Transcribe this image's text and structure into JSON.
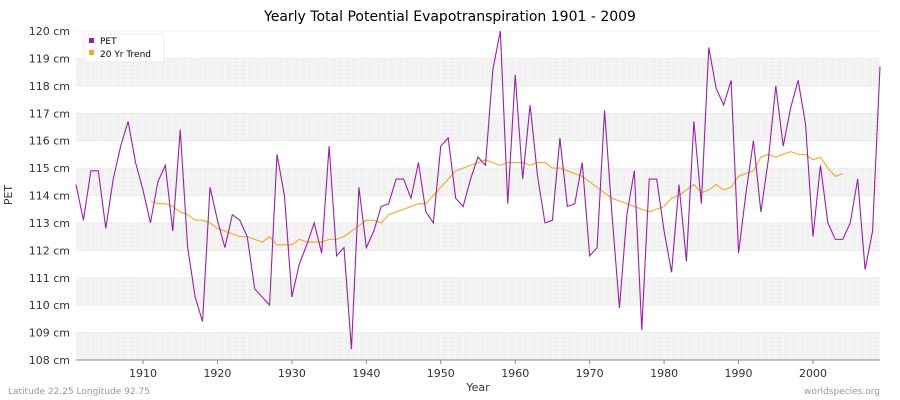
{
  "chart_data": {
    "type": "line",
    "title": "Yearly Total Potential Evapotranspiration 1901 - 2009",
    "xlabel": "Year",
    "ylabel": "PET",
    "xlim": [
      1901,
      2009
    ],
    "ylim": [
      108,
      120
    ],
    "x_ticks": [
      1910,
      1920,
      1930,
      1940,
      1950,
      1960,
      1970,
      1980,
      1990,
      2000
    ],
    "y_ticks": [
      {
        "value": 108,
        "label": "108 cm"
      },
      {
        "value": 109,
        "label": "109 cm"
      },
      {
        "value": 110,
        "label": "110 cm"
      },
      {
        "value": 111,
        "label": "111 cm"
      },
      {
        "value": 112,
        "label": "112 cm"
      },
      {
        "value": 113,
        "label": "113 cm"
      },
      {
        "value": 114,
        "label": "114 cm"
      },
      {
        "value": 115,
        "label": "115 cm"
      },
      {
        "value": 116,
        "label": "116 cm"
      },
      {
        "value": 117,
        "label": "117 cm"
      },
      {
        "value": 118,
        "label": "118 cm"
      },
      {
        "value": 119,
        "label": "119 cm"
      },
      {
        "value": 120,
        "label": "120 cm"
      }
    ],
    "grid": true,
    "legend_position": "top-left",
    "series": [
      {
        "name": "PET",
        "color": "#9b1fa8",
        "x_start": 1901,
        "values": [
          114.4,
          113.1,
          114.9,
          114.9,
          112.8,
          114.6,
          115.8,
          116.7,
          115.2,
          114.2,
          113.0,
          114.5,
          115.1,
          112.7,
          116.4,
          112.1,
          110.3,
          109.4,
          114.3,
          113.1,
          112.1,
          113.3,
          113.1,
          112.5,
          110.6,
          110.3,
          110.0,
          115.5,
          114.0,
          110.3,
          111.5,
          112.2,
          113.0,
          111.9,
          115.8,
          111.8,
          112.1,
          108.4,
          114.3,
          112.1,
          112.7,
          113.6,
          113.7,
          114.6,
          114.6,
          113.9,
          115.2,
          113.4,
          113.0,
          115.8,
          116.1,
          113.9,
          113.6,
          114.6,
          115.4,
          115.1,
          118.6,
          120.0,
          113.7,
          118.4,
          114.6,
          117.3,
          114.7,
          113.0,
          113.1,
          116.1,
          113.6,
          113.7,
          115.2,
          111.8,
          112.1,
          117.1,
          113.3,
          109.9,
          113.3,
          114.9,
          109.1,
          114.6,
          114.6,
          112.7,
          111.2,
          114.4,
          111.6,
          116.7,
          113.7,
          119.4,
          117.9,
          117.3,
          118.2,
          111.9,
          114.1,
          116.0,
          113.4,
          115.3,
          118.0,
          115.8,
          117.2,
          118.2,
          116.6,
          112.5,
          115.1,
          113.0,
          112.4,
          112.4,
          113.0,
          114.6,
          111.3,
          112.7,
          118.7
        ]
      },
      {
        "name": "20 Yr Trend",
        "color": "#f5a623",
        "x_start": 1911,
        "values": [
          113.8,
          113.7,
          113.7,
          113.6,
          113.4,
          113.3,
          113.1,
          113.1,
          113.0,
          112.8,
          112.7,
          112.6,
          112.5,
          112.5,
          112.4,
          112.3,
          112.5,
          112.2,
          112.2,
          112.2,
          112.4,
          112.3,
          112.3,
          112.3,
          112.4,
          112.4,
          112.5,
          112.7,
          112.9,
          113.1,
          113.1,
          113.0,
          113.3,
          113.4,
          113.5,
          113.6,
          113.7,
          113.7,
          114.0,
          114.3,
          114.6,
          114.9,
          115.0,
          115.1,
          115.2,
          115.3,
          115.2,
          115.1,
          115.2,
          115.2,
          115.2,
          115.1,
          115.2,
          115.2,
          115.0,
          115.0,
          114.9,
          114.8,
          114.7,
          114.5,
          114.3,
          114.1,
          113.9,
          113.8,
          113.7,
          113.6,
          113.5,
          113.4,
          113.5,
          113.6,
          113.9,
          114.0,
          114.2,
          114.4,
          114.1,
          114.2,
          114.4,
          114.2,
          114.3,
          114.7,
          114.8,
          114.9,
          115.4,
          115.5,
          115.4,
          115.5,
          115.6,
          115.5,
          115.5,
          115.3,
          115.4,
          115.0,
          114.7,
          114.8
        ]
      }
    ]
  },
  "footer": {
    "left": "Latitude 22.25 Longitude 92.75",
    "right": "worldspecies.org"
  }
}
